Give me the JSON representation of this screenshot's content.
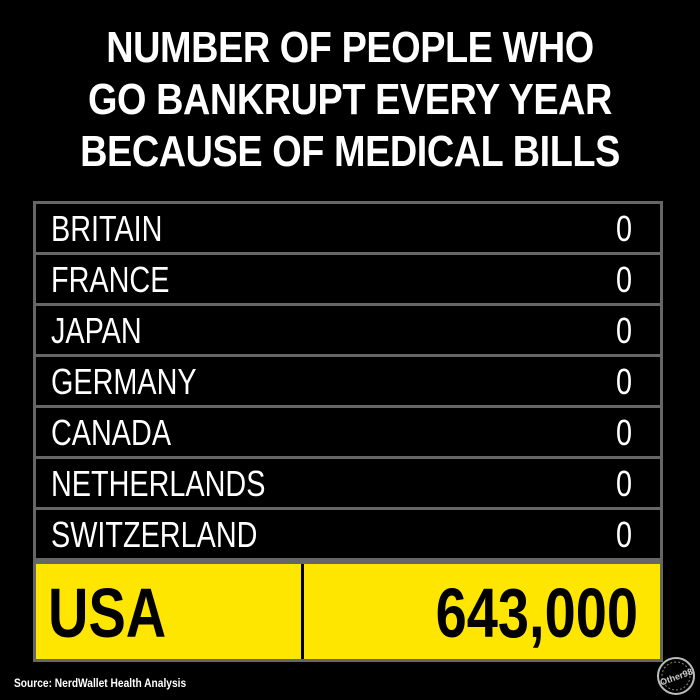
{
  "title_lines": [
    "NUMBER OF PEOPLE WHO",
    "GO BANKRUPT EVERY YEAR",
    "BECAUSE OF MEDICAL BILLS"
  ],
  "chart_data": {
    "type": "table",
    "title": "NUMBER OF PEOPLE WHO GO BANKRUPT EVERY YEAR BECAUSE OF MEDICAL BILLS",
    "categories": [
      "BRITAIN",
      "FRANCE",
      "JAPAN",
      "GERMANY",
      "CANADA",
      "NETHERLANDS",
      "SWITZERLAND",
      "USA"
    ],
    "values": [
      0,
      0,
      0,
      0,
      0,
      0,
      0,
      643000
    ],
    "rows": [
      {
        "country": "BRITAIN",
        "value": "0"
      },
      {
        "country": "FRANCE",
        "value": "0"
      },
      {
        "country": "JAPAN",
        "value": "0"
      },
      {
        "country": "GERMANY",
        "value": "0"
      },
      {
        "country": "CANADA",
        "value": "0"
      },
      {
        "country": "NETHERLANDS",
        "value": "0"
      },
      {
        "country": "SWITZERLAND",
        "value": "0"
      }
    ],
    "highlight": {
      "country": "USA",
      "value": "643,000"
    }
  },
  "source": "Source: NerdWallet Health Analysis",
  "logo_text": "Other 98",
  "colors": {
    "background": "#000000",
    "text": "#ffffff",
    "highlight": "#ffe600",
    "border": "#666666"
  }
}
